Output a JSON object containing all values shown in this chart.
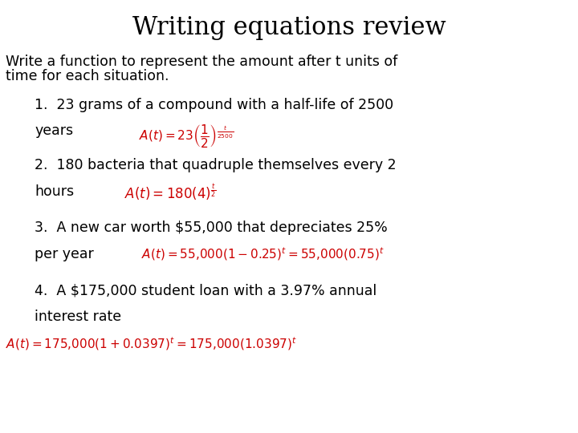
{
  "title": "Writing equations review",
  "background_color": "#ffffff",
  "title_fontsize": 22,
  "title_color": "#000000",
  "body_color": "#000000",
  "red_color": "#cc0000",
  "intro_line1": "Write a function to represent the amount after t units of",
  "intro_line2": "time for each situation.",
  "item1_line1": "1.  23 grams of a compound with a half-life of 2500",
  "item1_line2": "years",
  "item1_eq": "$\\mathit{A}(\\mathit{t}) = 23\\left(\\dfrac{1}{2}\\right)^{\\frac{t}{2500}}$",
  "item2_line1": "2.  180 bacteria that quadruple themselves every 2",
  "item2_line2": "hours",
  "item2_eq": "$\\mathit{A}(\\mathit{t}) = 180(4)^{\\frac{t}{2}}$",
  "item3_line1": "3.  A new car worth $55,000 that depreciates 25%",
  "item3_line2": "per year",
  "item3_eq": "$\\mathit{A}(\\mathit{t}) = 55{,}000(1-0.25)^t= 55{,}000(0.75)^t$",
  "item4_line1": "4.  A $175,000 student loan with a 3.97% annual",
  "item4_line2": "interest rate",
  "item4_eq": "$\\mathit{A}(\\mathit{t}) = 175{,}000(1+0.0397)^t= 175{,}000(1.0397)^t$",
  "body_fontsize": 12.5,
  "eq1_fontsize": 11,
  "eq2_fontsize": 12,
  "eq3_fontsize": 11,
  "eq4_fontsize": 11,
  "indent_num": 0.06,
  "indent_eq1": 0.24,
  "indent_eq2": 0.215,
  "indent_eq3": 0.245,
  "indent_eq4": 0.01
}
